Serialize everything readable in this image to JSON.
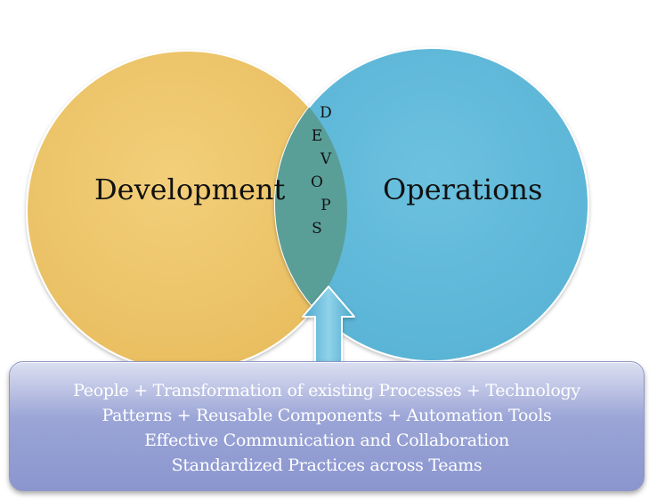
{
  "diagram": {
    "circles": [
      {
        "label": "Development",
        "color": "#ebc267"
      },
      {
        "label": "Operations",
        "color": "#5fb8d8"
      }
    ],
    "overlap": {
      "letters": [
        "D",
        "E",
        "V",
        "O",
        "P",
        "S"
      ],
      "color": "#5a9e98"
    },
    "arrow": {
      "icon": "up-arrow-icon",
      "color": "#6cc1df"
    },
    "info_box": {
      "lines": [
        "People + Transformation of existing Processes + Technology",
        "Patterns + Reusable Components + Automation Tools",
        "Effective Communication and Collaboration",
        "Standardized Practices across Teams"
      ],
      "gradient_top": "#dcdff1",
      "gradient_bottom": "#8b96cf",
      "text_color": "#ffffff"
    }
  }
}
